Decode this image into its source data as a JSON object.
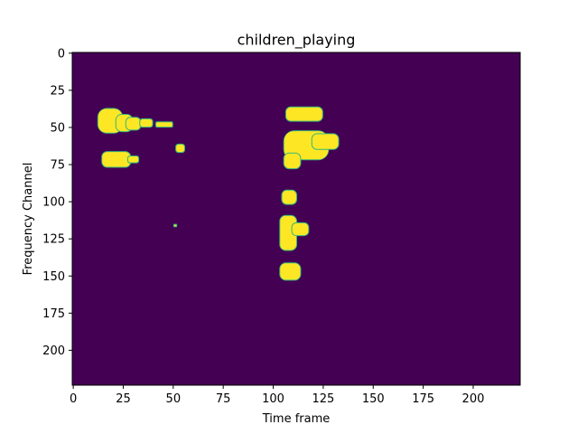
{
  "chart_data": {
    "type": "heatmap",
    "title": "children_playing",
    "xlabel": "Time frame",
    "ylabel": "Frequency Channel",
    "xlim": [
      0,
      224
    ],
    "ylim": [
      224,
      0
    ],
    "xticks": [
      0,
      25,
      50,
      75,
      100,
      125,
      150,
      175,
      200
    ],
    "yticks": [
      0,
      25,
      50,
      75,
      100,
      125,
      150,
      175,
      200
    ],
    "grid": false,
    "colormap": {
      "low": "#440154",
      "edge": "#35b779",
      "high": "#fde725"
    },
    "matrix_shape": [
      224,
      224
    ],
    "active_regions": [
      {
        "t0": 13,
        "t1": 25,
        "f0": 38,
        "f1": 54
      },
      {
        "t0": 22,
        "t1": 30,
        "f0": 42,
        "f1": 53
      },
      {
        "t0": 27,
        "t1": 34,
        "f0": 44,
        "f1": 52
      },
      {
        "t0": 34,
        "t1": 40,
        "f0": 45,
        "f1": 50
      },
      {
        "t0": 42,
        "t1": 50,
        "f0": 47,
        "f1": 50
      },
      {
        "t0": 15,
        "t1": 29,
        "f0": 67,
        "f1": 77
      },
      {
        "t0": 28,
        "t1": 33,
        "f0": 70,
        "f1": 74
      },
      {
        "t0": 52,
        "t1": 56,
        "f0": 62,
        "f1": 67
      },
      {
        "t0": 51,
        "t1": 52,
        "f0": 116,
        "f1": 117
      },
      {
        "t0": 107,
        "t1": 125,
        "f0": 37,
        "f1": 46
      },
      {
        "t0": 106,
        "t1": 128,
        "f0": 53,
        "f1": 72
      },
      {
        "t0": 120,
        "t1": 133,
        "f0": 55,
        "f1": 65
      },
      {
        "t0": 106,
        "t1": 114,
        "f0": 68,
        "f1": 78
      },
      {
        "t0": 105,
        "t1": 112,
        "f0": 93,
        "f1": 102
      },
      {
        "t0": 104,
        "t1": 112,
        "f0": 110,
        "f1": 133
      },
      {
        "t0": 110,
        "t1": 118,
        "f0": 115,
        "f1": 123
      },
      {
        "t0": 104,
        "t1": 114,
        "f0": 142,
        "f1": 153
      }
    ]
  }
}
